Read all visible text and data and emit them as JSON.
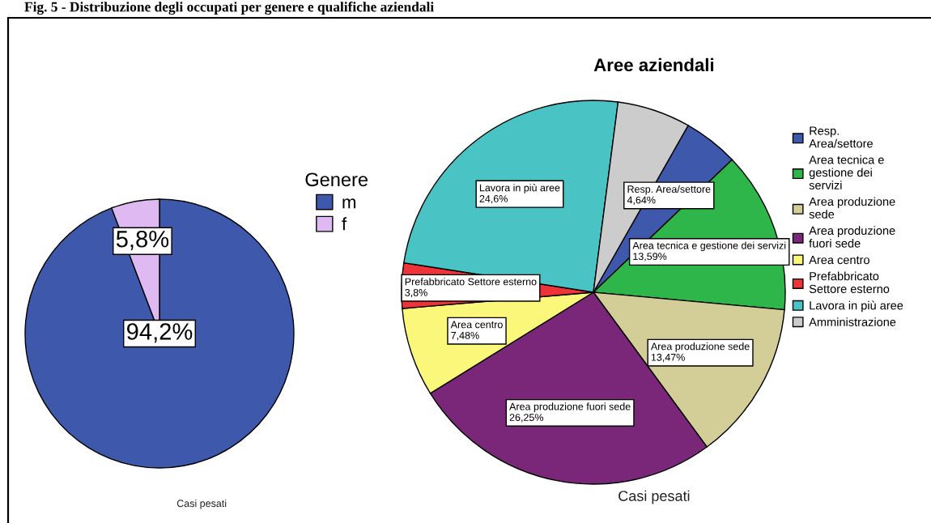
{
  "chart_data": [
    {
      "type": "pie",
      "title": "Fig. 5 - Distribuzione degli occupati per genere e qualifiche aziendali",
      "legend_title": "Genere",
      "categories": [
        "m",
        "f"
      ],
      "values": [
        94.2,
        5.8
      ],
      "colors": [
        "#3e59ab",
        "#dfb9f1"
      ],
      "value_labels": [
        "94,2%",
        "5,8%"
      ],
      "legend": "top right",
      "annotations": [
        "Casi pesati"
      ]
    },
    {
      "type": "pie",
      "title": "Aree aziendali",
      "categories": [
        "Resp. Area/settore",
        "Area tecnica e gestione dei servizi",
        "Area produzione sede",
        "Area produzione fuori sede",
        "Area centro",
        "Prefabbricato Settore esterno",
        "Lavora in più aree",
        "Amministrazione"
      ],
      "values": [
        4.64,
        13.59,
        13.47,
        26.25,
        7.48,
        3.8,
        24.6,
        6.17
      ],
      "colors": [
        "#3e59ab",
        "#2fb64a",
        "#d3cd98",
        "#7a277a",
        "#faf77a",
        "#ee3339",
        "#4ac3c5",
        "#cccccc"
      ],
      "value_labels": [
        "Resp. Area/settore\n4,64%",
        "Area tecnica e gestione dei servizi\n13,59%",
        "Area produzione sede\n13,47%",
        "Area produzione fuori sede\n26,25%",
        "Area centro\n7,48%",
        "Prefabbricato Settore esterno\n3,8%",
        "Lavora in più aree\n24,6%",
        null
      ],
      "legend": "right",
      "annotations": [
        "Casi pesati"
      ]
    }
  ]
}
